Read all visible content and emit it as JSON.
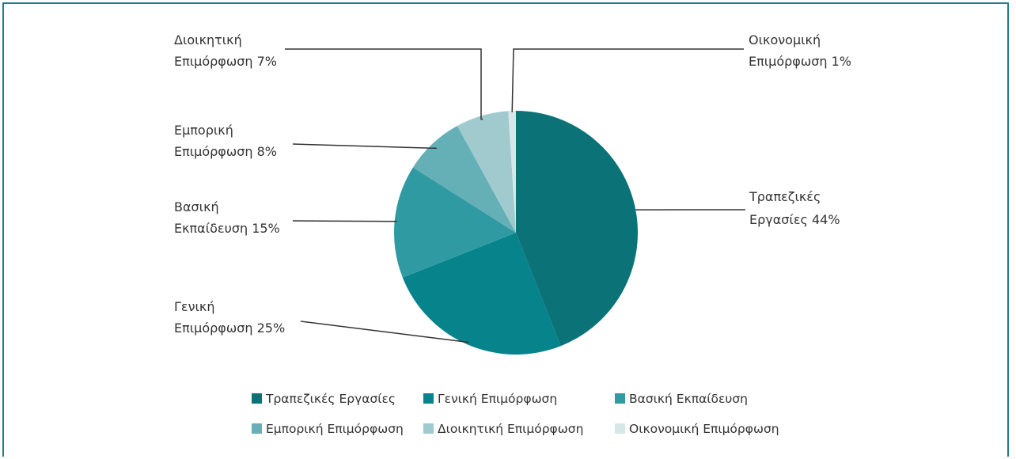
{
  "chart_data": {
    "type": "pie",
    "title": "",
    "slices": [
      {
        "label": "Τραπεζικές Εργασίες",
        "value": 44,
        "color": "#0b7278",
        "callout": [
          "Τραπεζικές",
          "Εργασίες 44%"
        ]
      },
      {
        "label": "Γενική Επιμόρφωση",
        "value": 25,
        "color": "#06838b",
        "callout": [
          "Γενική",
          "Επιμόρφωση 25%"
        ]
      },
      {
        "label": "Βασική Εκπαίδευση",
        "value": 15,
        "color": "#309aa3",
        "callout": [
          "Βασική",
          "Εκπαίδευση 15%"
        ]
      },
      {
        "label": "Εμπορική Επιμόρφωση",
        "value": 8,
        "color": "#64b0b6",
        "callout": [
          "Εμπορική",
          "Επιμόρφωση 8%"
        ]
      },
      {
        "label": "Διοικητική Επιμόρφωση",
        "value": 7,
        "color": "#a0cacd",
        "callout": [
          "Διοικητική",
          "Επιμόρφωση 7%"
        ]
      },
      {
        "label": "Οικονομική Επιμόρφωση",
        "value": 1,
        "color": "#d5e7e8",
        "callout": [
          "Οικονομική",
          "Επιμόρφωση 1%"
        ]
      }
    ],
    "legend_position": "bottom"
  }
}
